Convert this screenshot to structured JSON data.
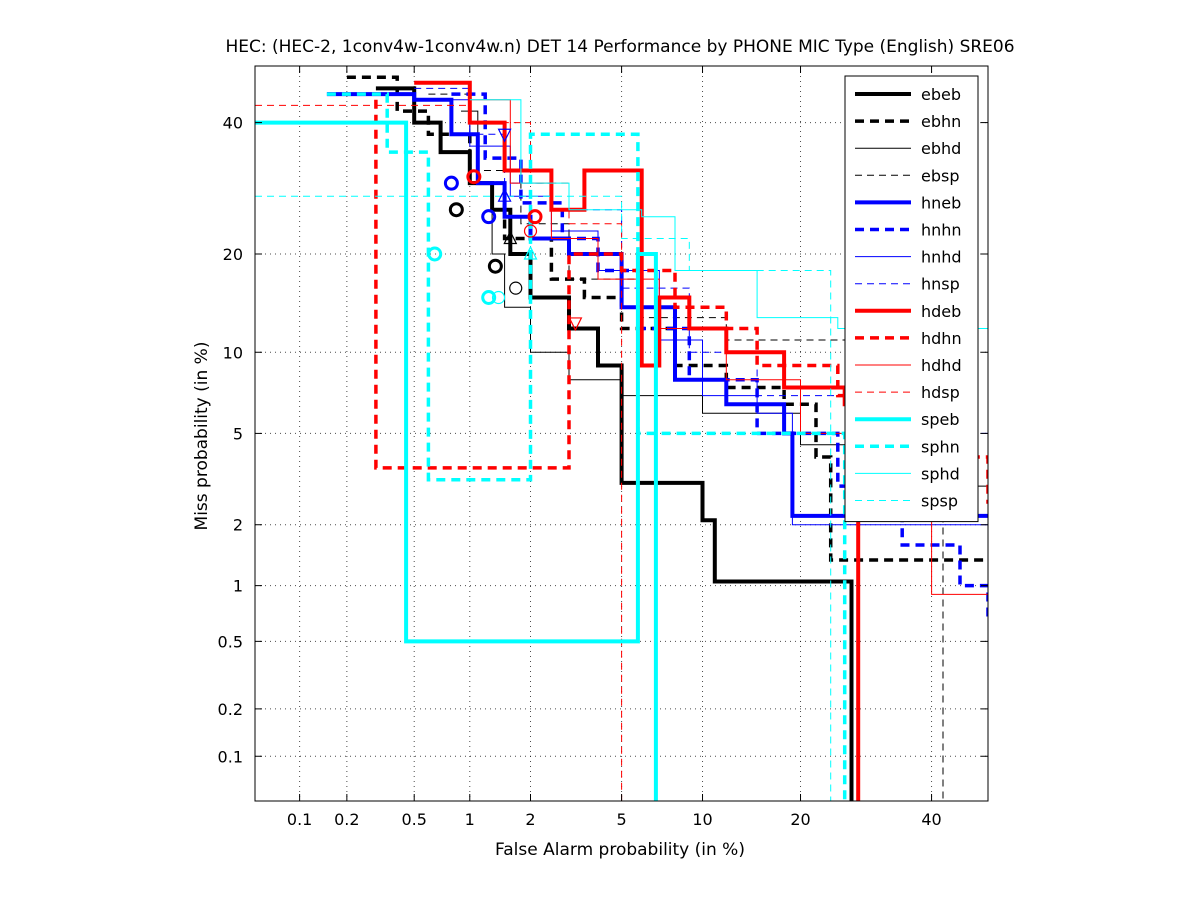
{
  "chart_data": {
    "type": "line",
    "title": "HEC: (HEC-2, 1conv4w-1conv4w.n) DET 14 Performance by PHONE MIC Type (English) SRE06",
    "xlabel": "False Alarm probability (in %)",
    "ylabel": "Miss probability (in %)",
    "x_scale": "probit",
    "y_scale": "probit",
    "xlim": [
      0.05,
      50
    ],
    "ylim": [
      0.05,
      50
    ],
    "x_ticks": [
      0.1,
      0.2,
      0.5,
      1,
      2,
      5,
      10,
      20,
      40
    ],
    "x_tick_labels": [
      "0.1",
      "0.2",
      "0.5",
      "1",
      "2",
      "5",
      "10",
      "20",
      "40"
    ],
    "y_ticks": [
      0.1,
      0.2,
      0.5,
      1,
      2,
      5,
      10,
      20,
      40
    ],
    "y_tick_labels": [
      "0.1",
      "0.2",
      "0.5",
      "1",
      "2",
      "5",
      "10",
      "20",
      "40"
    ],
    "grid": true,
    "legend_position": "top-right",
    "series": [
      {
        "name": "ebeb",
        "color": "#000000",
        "style": "solid-thick",
        "points": [
          [
            0.3,
            46
          ],
          [
            0.5,
            40
          ],
          [
            0.7,
            35
          ],
          [
            1.0,
            30
          ],
          [
            1.3,
            26
          ],
          [
            1.6,
            20
          ],
          [
            2.0,
            15
          ],
          [
            3.0,
            12
          ],
          [
            4.0,
            9
          ],
          [
            5.0,
            3.1
          ],
          [
            8.0,
            3.1
          ],
          [
            10.0,
            2.1
          ],
          [
            11.0,
            1.05
          ],
          [
            25.0,
            1.05
          ],
          [
            27.0,
            0.05
          ]
        ],
        "marker": {
          "shape": "circle",
          "x": 1.35,
          "y": 18.5
        }
      },
      {
        "name": "ebhn",
        "color": "#000000",
        "style": "dashed-thick",
        "points": [
          [
            0.2,
            48
          ],
          [
            0.4,
            42
          ],
          [
            0.6,
            38
          ],
          [
            1.0,
            30
          ],
          [
            1.5,
            22
          ],
          [
            2.5,
            17
          ],
          [
            3.5,
            15
          ],
          [
            5.0,
            12
          ],
          [
            8.0,
            9
          ],
          [
            12.0,
            7.5
          ],
          [
            18.0,
            6.5
          ],
          [
            22.0,
            4
          ],
          [
            24.0,
            1.35
          ],
          [
            50.0,
            1.35
          ]
        ],
        "marker": {
          "shape": "circle",
          "x": 0.85,
          "y": 26
        }
      },
      {
        "name": "ebhd",
        "color": "#000000",
        "style": "solid-thin",
        "points": [
          [
            0.9,
            42
          ],
          [
            1.1,
            30
          ],
          [
            1.3,
            20
          ],
          [
            1.5,
            14
          ],
          [
            2.0,
            10
          ],
          [
            3.0,
            8
          ],
          [
            5.0,
            7
          ],
          [
            10.0,
            6
          ],
          [
            20.0,
            4.5
          ],
          [
            35.0,
            3
          ],
          [
            50.0,
            2
          ]
        ],
        "marker": {
          "shape": "triangle-up",
          "x": 1.6,
          "y": 22
        }
      },
      {
        "name": "ebsp",
        "color": "#000000",
        "style": "dashed-thin",
        "points": [
          [
            0.6,
            45
          ],
          [
            1.0,
            32
          ],
          [
            1.8,
            24
          ],
          [
            3.0,
            17
          ],
          [
            6.0,
            13
          ],
          [
            12.0,
            11
          ],
          [
            25.0,
            11
          ],
          [
            42.0,
            10
          ],
          [
            42.0,
            0.05
          ]
        ],
        "marker": {
          "shape": "circle",
          "x": 1.7,
          "y": 16
        }
      },
      {
        "name": "hneb",
        "color": "#0000ff",
        "style": "solid-thick",
        "points": [
          [
            0.15,
            45
          ],
          [
            0.5,
            44
          ],
          [
            0.8,
            38
          ],
          [
            1.1,
            30
          ],
          [
            1.5,
            25
          ],
          [
            2.0,
            22
          ],
          [
            3.0,
            20
          ],
          [
            5.0,
            14
          ],
          [
            8.0,
            8
          ],
          [
            12.0,
            6.5
          ],
          [
            18.0,
            5
          ],
          [
            19.0,
            2.2
          ],
          [
            50.0,
            2.2
          ]
        ],
        "marker": {
          "shape": "circle",
          "x": 0.8,
          "y": 30
        }
      },
      {
        "name": "hnhn",
        "color": "#0000ff",
        "style": "dashed-thick",
        "points": [
          [
            0.8,
            45
          ],
          [
            1.2,
            34
          ],
          [
            1.8,
            27
          ],
          [
            2.8,
            22
          ],
          [
            4.0,
            18
          ],
          [
            6.0,
            12
          ],
          [
            9.0,
            8
          ],
          [
            15.0,
            5
          ],
          [
            25.0,
            3
          ],
          [
            35.0,
            1.6
          ],
          [
            45.0,
            1.0
          ],
          [
            50.0,
            0.65
          ]
        ],
        "marker": {
          "shape": "circle",
          "x": 1.25,
          "y": 25
        }
      },
      {
        "name": "hnhd",
        "color": "#0000ff",
        "style": "solid-thin",
        "points": [
          [
            0.7,
            44
          ],
          [
            1.0,
            36
          ],
          [
            1.6,
            28
          ],
          [
            2.5,
            23
          ],
          [
            4.0,
            18
          ],
          [
            7.0,
            11
          ],
          [
            10.0,
            7
          ],
          [
            15.0,
            6
          ],
          [
            19.0,
            2
          ],
          [
            50.0,
            2
          ]
        ],
        "marker": {
          "shape": "triangle-up",
          "x": 1.5,
          "y": 28
        }
      },
      {
        "name": "hnsp",
        "color": "#0000ff",
        "style": "dashed-thin",
        "points": [
          [
            0.5,
            46
          ],
          [
            1.0,
            38
          ],
          [
            1.5,
            30
          ],
          [
            2.5,
            26
          ],
          [
            5.0,
            16
          ],
          [
            9.0,
            10
          ],
          [
            15.0,
            7
          ],
          [
            30.0,
            5
          ],
          [
            50.0,
            4.5
          ]
        ],
        "marker": {
          "shape": "triangle-down",
          "x": 1.5,
          "y": 38
        }
      },
      {
        "name": "hdeb",
        "color": "#ff0000",
        "style": "solid-thick",
        "points": [
          [
            0.5,
            47
          ],
          [
            1.0,
            40
          ],
          [
            1.5,
            32
          ],
          [
            2.5,
            26
          ],
          [
            3.5,
            32
          ],
          [
            6.0,
            30
          ],
          [
            6.0,
            9
          ],
          [
            7.0,
            15
          ],
          [
            9.0,
            12
          ],
          [
            12.0,
            10
          ],
          [
            18.0,
            7.5
          ],
          [
            26.0,
            6.5
          ],
          [
            28.0,
            0.05
          ]
        ],
        "marker": {
          "shape": "circle",
          "x": 1.05,
          "y": 31
        }
      },
      {
        "name": "hdhn",
        "color": "#ff0000",
        "style": "dashed-thick",
        "points": [
          [
            0.3,
            44
          ],
          [
            0.3,
            3.6
          ],
          [
            2.5,
            3.6
          ],
          [
            3.0,
            20
          ],
          [
            5.0,
            18
          ],
          [
            8.0,
            14
          ],
          [
            12.0,
            12
          ],
          [
            15.0,
            9
          ],
          [
            25.0,
            7
          ],
          [
            40.0,
            4
          ],
          [
            50.0,
            2.5
          ]
        ],
        "marker": {
          "shape": "circle",
          "x": 2.1,
          "y": 25
        }
      },
      {
        "name": "hdhd",
        "color": "#ff0000",
        "style": "solid-thin",
        "points": [
          [
            1.0,
            44
          ],
          [
            1.6,
            30
          ],
          [
            2.5,
            22
          ],
          [
            4.0,
            17
          ],
          [
            7.0,
            12
          ],
          [
            12.0,
            8
          ],
          [
            20.0,
            5
          ],
          [
            30.0,
            3
          ],
          [
            40.0,
            0.9
          ],
          [
            50.0,
            0.9
          ]
        ],
        "marker": {
          "shape": "triangle-down",
          "x": 3.2,
          "y": 12.5
        }
      },
      {
        "name": "hdsp",
        "color": "#ff0000",
        "style": "dashed-thin",
        "points": [
          [
            0.05,
            43
          ],
          [
            1.0,
            40
          ],
          [
            2.0,
            30
          ],
          [
            3.0,
            24
          ],
          [
            5.0,
            20
          ],
          [
            5.0,
            0.05
          ]
        ],
        "marker": {
          "shape": "circle",
          "x": 2.0,
          "y": 23
        }
      },
      {
        "name": "speb",
        "color": "#00ffff",
        "style": "solid-thick",
        "points": [
          [
            0.05,
            40
          ],
          [
            0.45,
            40
          ],
          [
            0.45,
            0.5
          ],
          [
            5.8,
            0.5
          ],
          [
            5.8,
            20
          ],
          [
            6.8,
            20
          ],
          [
            6.8,
            0.05
          ]
        ],
        "marker": {
          "shape": "circle",
          "x": 0.65,
          "y": 20
        }
      },
      {
        "name": "sphn",
        "color": "#00ffff",
        "style": "dashed-thick",
        "points": [
          [
            0.15,
            45
          ],
          [
            0.35,
            40
          ],
          [
            0.35,
            35
          ],
          [
            0.6,
            35
          ],
          [
            0.6,
            3.2
          ],
          [
            2.0,
            3.2
          ],
          [
            2.0,
            38
          ],
          [
            4.0,
            38
          ],
          [
            5.8,
            5
          ],
          [
            25.0,
            5
          ],
          [
            26.0,
            0.05
          ]
        ],
        "marker": {
          "shape": "circle",
          "x": 1.25,
          "y": 15
        }
      },
      {
        "name": "sphd",
        "color": "#00ffff",
        "style": "solid-thin",
        "points": [
          [
            1.0,
            44
          ],
          [
            1.8,
            30
          ],
          [
            3.0,
            26
          ],
          [
            6.0,
            25
          ],
          [
            8.0,
            18
          ],
          [
            15.0,
            13
          ],
          [
            25.0,
            12
          ],
          [
            50.0,
            12
          ]
        ],
        "marker": {
          "shape": "triangle-up",
          "x": 2.0,
          "y": 20
        }
      },
      {
        "name": "spsp",
        "color": "#00ffff",
        "style": "dashed-thin",
        "points": [
          [
            0.05,
            28
          ],
          [
            1.5,
            28
          ],
          [
            3.0,
            28
          ],
          [
            5.0,
            22
          ],
          [
            9.0,
            18
          ],
          [
            20.0,
            18
          ],
          [
            24.0,
            0.05
          ]
        ],
        "marker": {
          "shape": "circle",
          "x": 1.4,
          "y": 15
        }
      }
    ]
  }
}
